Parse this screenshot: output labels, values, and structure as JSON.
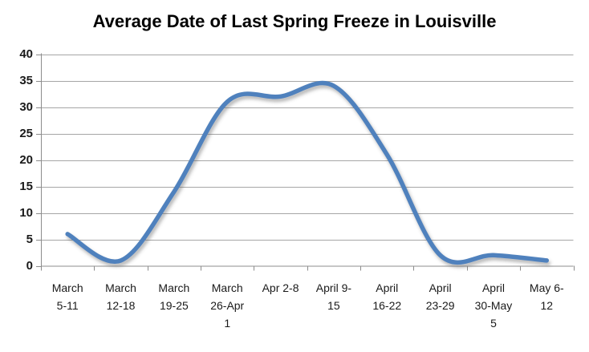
{
  "chart_data": {
    "type": "line",
    "title": "Average Date of Last Spring Freeze in Louisville",
    "categories": [
      "March 5-11",
      "March 12-18",
      "March 19-25",
      "March 26-Apr 1",
      "Apr 2-8",
      "April 9-15",
      "April 16-22",
      "April 23-29",
      "April 30-May 5",
      "May 6-12"
    ],
    "x_label_lines": [
      [
        "March",
        "5-11"
      ],
      [
        "March",
        "12-18"
      ],
      [
        "March",
        "19-25"
      ],
      [
        "March",
        "26-Apr",
        "1"
      ],
      [
        "Apr 2-8"
      ],
      [
        "April 9-",
        "15"
      ],
      [
        "April",
        "16-22"
      ],
      [
        "April",
        "23-29"
      ],
      [
        "April",
        "30-May",
        "5"
      ],
      [
        "May 6-",
        "12"
      ]
    ],
    "values": [
      6,
      1,
      14,
      31,
      32,
      34,
      21,
      2,
      2,
      1
    ],
    "xlabel": "",
    "ylabel": "",
    "ylim": [
      0,
      40
    ],
    "yticks": [
      40,
      35,
      30,
      25,
      20,
      15,
      10,
      5,
      0
    ],
    "grid": "horizontal",
    "legend": "none",
    "line_smoothing": true
  },
  "colors": {
    "line": "#4F81BD",
    "line_shadow": "rgba(90,90,90,0.45)",
    "gridline": "#A6A6A6",
    "axis": "#8C8C8C",
    "label_text": "#1a1a1a",
    "title_text": "#000000",
    "background": "#FFFFFF"
  }
}
